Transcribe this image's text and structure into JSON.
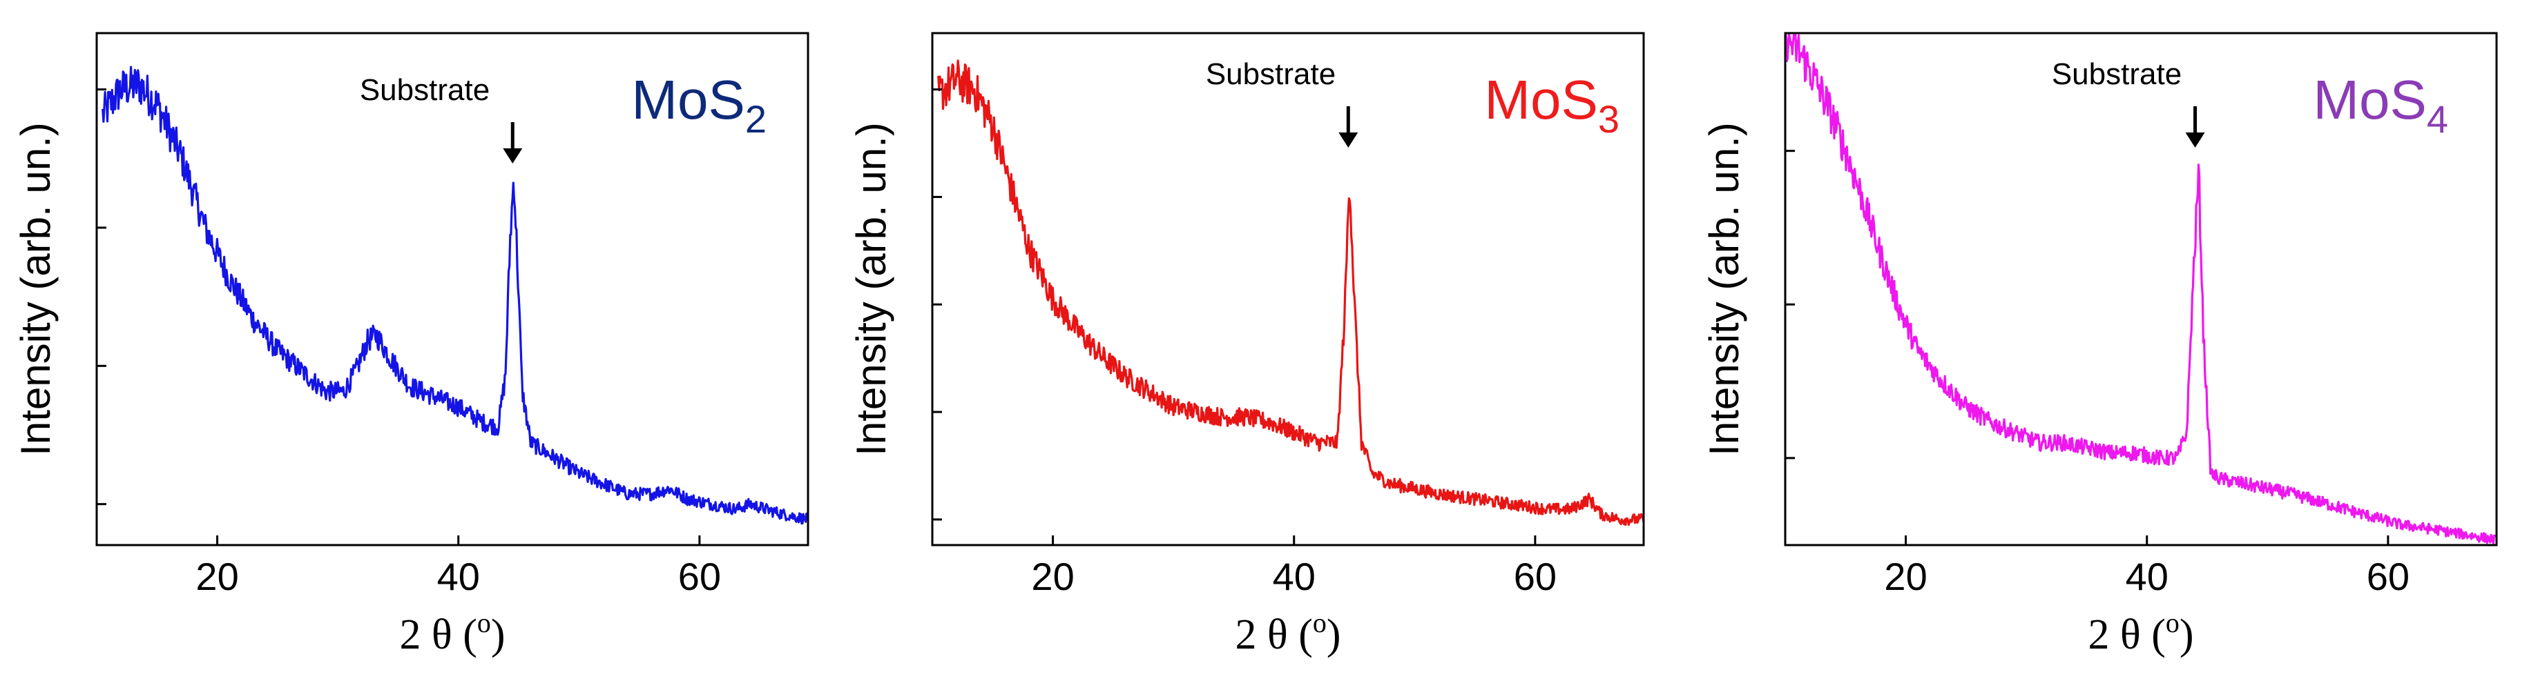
{
  "chart_data": [
    {
      "type": "line",
      "title": "",
      "label_main": "MoS",
      "label_sub": "2",
      "label_color": "#0d2a7a",
      "line_color": "#1414e6",
      "xlabel_parts": [
        "2 ",
        "θ",
        " (",
        "o",
        ")"
      ],
      "ylabel": "Intensity (arb. un.)",
      "xlim": [
        10,
        69
      ],
      "ylim": [
        0,
        100
      ],
      "xticks": [
        20,
        40,
        60
      ],
      "xtick_labels": [
        "20",
        "40",
        "60"
      ],
      "yticks": [
        8,
        35,
        62,
        89
      ],
      "annotation": {
        "text": "Substrate",
        "x": 44.5
      },
      "series": [
        {
          "name": "MoS2",
          "x": [
            10.5,
            12,
            13.5,
            15,
            17,
            19,
            21,
            23,
            25,
            27,
            29,
            30.5,
            31.5,
            32.5,
            33.2,
            34.5,
            36,
            38,
            40,
            42,
            43.3,
            43.9,
            44.3,
            44.6,
            44.9,
            45.3,
            46,
            48,
            50,
            52,
            54,
            56,
            57.5,
            59,
            61,
            63,
            64.2,
            65.5,
            67,
            69
          ],
          "y": [
            84,
            89,
            90,
            86,
            76,
            62,
            52,
            44,
            38,
            34,
            30,
            30,
            34,
            40,
            41,
            36,
            31,
            29,
            27,
            24,
            23,
            33,
            60,
            72,
            55,
            30,
            20,
            17,
            14,
            12,
            10,
            10,
            11,
            9,
            8,
            7,
            8,
            7,
            6,
            5
          ]
        }
      ]
    },
    {
      "type": "line",
      "title": "",
      "label_main": "MoS",
      "label_sub": "3",
      "label_color": "#ee1c1c",
      "line_color": "#e81515",
      "xlabel_parts": [
        "2 ",
        "θ",
        " (",
        "o",
        ")"
      ],
      "ylabel": "Intensity (arb. un.)",
      "xlim": [
        10,
        69
      ],
      "ylim": [
        0,
        100
      ],
      "xticks": [
        20,
        40,
        60
      ],
      "xtick_labels": [
        "20",
        "40",
        "60"
      ],
      "yticks": [
        5,
        26,
        47,
        68,
        89
      ],
      "annotation": {
        "text": "Substrate",
        "x": 44.5
      },
      "series": [
        {
          "name": "MoS3",
          "x": [
            10.5,
            12,
            13.5,
            15,
            16.5,
            18,
            20,
            22,
            24,
            26,
            28,
            30,
            32,
            34,
            36,
            38,
            40,
            42,
            43.6,
            44.2,
            44.6,
            45,
            45.6,
            46.5,
            48,
            50,
            52,
            55,
            58,
            61,
            63,
            64.5,
            65.5,
            67,
            69
          ],
          "y": [
            88,
            91,
            89,
            82,
            70,
            58,
            48,
            42,
            37,
            33,
            30,
            27,
            26,
            25,
            25,
            24,
            22,
            20,
            20,
            45,
            72,
            48,
            20,
            14,
            12,
            11,
            10,
            9,
            8,
            7,
            7,
            9,
            6,
            5,
            5
          ]
        }
      ]
    },
    {
      "type": "line",
      "title": "",
      "label_main": "MoS",
      "label_sub": "4",
      "label_color": "#8a3cb5",
      "line_color": "#ee18ee",
      "xlabel_parts": [
        "2 ",
        "θ",
        " (",
        "o",
        ")"
      ],
      "ylabel": "Intensity (arb. un.)",
      "xlim": [
        10,
        69
      ],
      "ylim": [
        0,
        100
      ],
      "xticks": [
        20,
        40,
        60
      ],
      "xtick_labels": [
        "20",
        "40",
        "60"
      ],
      "yticks": [
        17,
        47,
        77
      ],
      "annotation": {
        "text": "Substrate",
        "x": 44
      },
      "series": [
        {
          "name": "MoS4",
          "x": [
            10,
            11,
            12,
            13.5,
            15,
            16.5,
            18,
            19.5,
            21,
            23,
            25,
            27,
            29,
            31,
            33,
            35,
            37,
            39,
            41,
            42.5,
            43.3,
            43.9,
            44.3,
            44.7,
            45.3,
            46,
            48,
            50,
            52,
            55,
            58,
            61,
            64,
            66.5,
            69
          ],
          "y": [
            99,
            97,
            93,
            86,
            77,
            67,
            56,
            46,
            38,
            32,
            27,
            24,
            22,
            20,
            20,
            19,
            18,
            18,
            17,
            17,
            22,
            55,
            73,
            40,
            14,
            13,
            12,
            11,
            10,
            8,
            6,
            4,
            3,
            2,
            1
          ]
        }
      ]
    }
  ]
}
